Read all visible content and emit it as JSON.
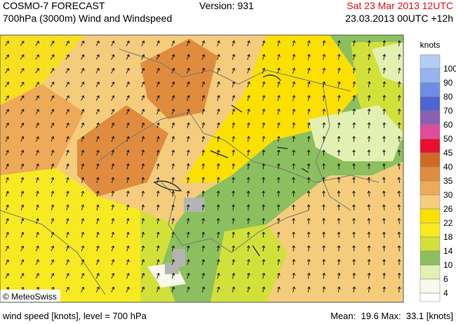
{
  "header": {
    "title": "COSMO-7 FORECAST",
    "subtitle": "700hPa (3000m) Wind and Windspeed",
    "version": "Version: 931",
    "valid_time": "Sat 23 Mar 2013 12UTC",
    "run_time": "23.03.2013 00UTC +12h"
  },
  "legend": {
    "unit": "knots",
    "levels": [
      {
        "label": "100",
        "color": "#b4ccf4"
      },
      {
        "label": "90",
        "color": "#98b4f0"
      },
      {
        "label": "80",
        "color": "#6f8de6"
      },
      {
        "label": "70",
        "color": "#4f63d6"
      },
      {
        "label": "60",
        "color": "#8a60b0"
      },
      {
        "label": "50",
        "color": "#e04c9c"
      },
      {
        "label": "45",
        "color": "#e8102c"
      },
      {
        "label": "40",
        "color": "#d06a22"
      },
      {
        "label": "35",
        "color": "#e08c3e"
      },
      {
        "label": "30",
        "color": "#eeaa58"
      },
      {
        "label": "26",
        "color": "#f4cc7c"
      },
      {
        "label": "22",
        "color": "#fce000"
      },
      {
        "label": "18",
        "color": "#f8ea20"
      },
      {
        "label": "14",
        "color": "#d2e03a"
      },
      {
        "label": "10",
        "color": "#8cbf5e"
      },
      {
        "label": "6",
        "color": "#e2f0b2"
      },
      {
        "label": "4",
        "color": "#f8f8ec"
      }
    ]
  },
  "map": {
    "copyright": "© MeteoSwiss"
  },
  "footer": {
    "description": "wind speed [knots], level = 700 hPa",
    "stats": "Mean:  19.6 Max:  33.1 [knots]"
  }
}
